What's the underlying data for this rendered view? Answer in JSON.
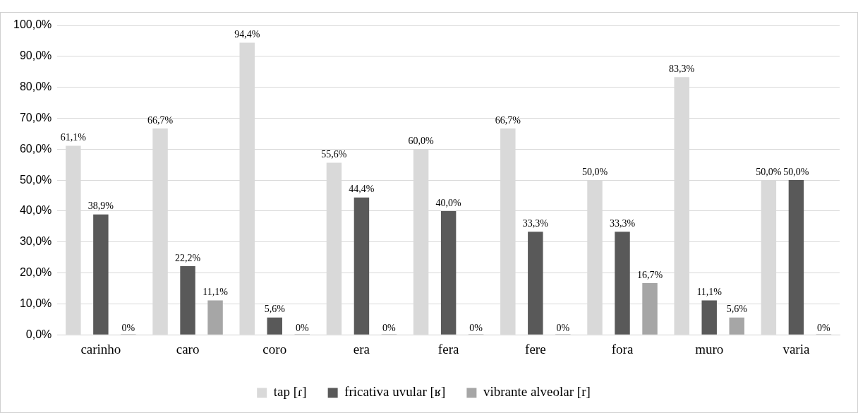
{
  "chart_data": {
    "type": "bar",
    "categories": [
      "carinho",
      "caro",
      "coro",
      "era",
      "fera",
      "fere",
      "fora",
      "muro",
      "varia"
    ],
    "series": [
      {
        "name": "tap [ɾ]",
        "color": "#d9d9d9",
        "values": [
          61.1,
          66.7,
          94.4,
          55.6,
          60.0,
          66.7,
          50.0,
          83.3,
          50.0
        ],
        "value_labels": [
          "61,1%",
          "66,7%",
          "94,4%",
          "55,6%",
          "60,0%",
          "66,7%",
          "50,0%",
          "83,3%",
          "50,0%"
        ]
      },
      {
        "name": "fricativa uvular [ʁ]",
        "color": "#595959",
        "values": [
          38.9,
          22.2,
          5.6,
          44.4,
          40.0,
          33.3,
          33.3,
          11.1,
          50.0
        ],
        "value_labels": [
          "38,9%",
          "22,2%",
          "5,6%",
          "44,4%",
          "40,0%",
          "33,3%",
          "33,3%",
          "11,1%",
          "50,0%"
        ]
      },
      {
        "name": "vibrante alveolar [r]",
        "color": "#a6a6a6",
        "values": [
          0,
          11.1,
          0,
          0,
          0,
          0,
          16.7,
          5.6,
          0
        ],
        "value_labels": [
          "0%",
          "11,1%",
          "0%",
          "0%",
          "0%",
          "0%",
          "16,7%",
          "5,6%",
          "0%"
        ]
      }
    ],
    "ylim": [
      0,
      100
    ],
    "yticks": [
      {
        "value": 0,
        "label": "0,0%"
      },
      {
        "value": 10,
        "label": "10,0%"
      },
      {
        "value": 20,
        "label": "20,0%"
      },
      {
        "value": 30,
        "label": "30,0%"
      },
      {
        "value": 40,
        "label": "40,0%"
      },
      {
        "value": 50,
        "label": "50,0%"
      },
      {
        "value": 60,
        "label": "60,0%"
      },
      {
        "value": 70,
        "label": "70,0%"
      },
      {
        "value": 80,
        "label": "80,0%"
      },
      {
        "value": 90,
        "label": "90,0%"
      },
      {
        "value": 100,
        "label": "100,0%"
      }
    ],
    "grid": "y",
    "legend": "bottom"
  }
}
